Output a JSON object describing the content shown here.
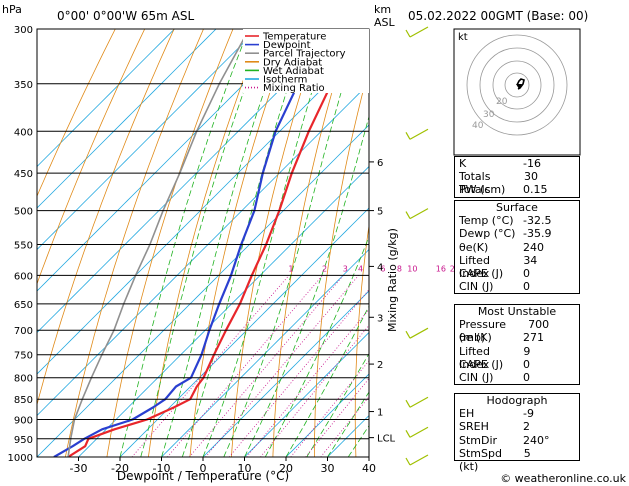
{
  "header": {
    "hpa_label": "hPa",
    "location": "0°00'  0°00'W  65m  ASL",
    "km_label": "km",
    "asl_label": "ASL",
    "datetime": "05.02.2022  00GMT  (Base: 00)"
  },
  "footer": {
    "credit": "© weatheronline.co.uk"
  },
  "chart_data": {
    "type": "line",
    "subtype": "skew-T log-P diagram",
    "xlabel": "Dewpoint / Temperature (°C)",
    "ylabel": "",
    "xlim": [
      -40,
      40
    ],
    "ylim": [
      1000,
      300
    ],
    "y_scale": "log",
    "x_ticks": [
      -30,
      -20,
      -10,
      0,
      10,
      20,
      30,
      40
    ],
    "pressure_levels": [
      300,
      350,
      400,
      450,
      500,
      550,
      600,
      650,
      700,
      750,
      800,
      850,
      900,
      950,
      1000
    ],
    "km_ticks": [
      {
        "label": "1",
        "p": 880
      },
      {
        "label": "2",
        "p": 770
      },
      {
        "label": "3",
        "p": 675
      },
      {
        "label": "4",
        "p": 585
      },
      {
        "label": "5",
        "p": 500
      },
      {
        "label": "6",
        "p": 436
      },
      {
        "label": "LCL",
        "p": 947
      }
    ],
    "mixing_ratio_axis_label": "Mixing Ratio (g/kg)",
    "mixing_ratio_labels": [
      "1",
      "2",
      "3",
      "4",
      "6",
      "8",
      "10",
      "16",
      "20",
      "25"
    ],
    "legend": {
      "placement": "top-right",
      "entries": [
        {
          "name": "Temperature",
          "color": "#e8262b",
          "style": "solid"
        },
        {
          "name": "Dewpoint",
          "color": "#2a3fd0",
          "style": "solid"
        },
        {
          "name": "Parcel Trajectory",
          "color": "#909090",
          "style": "solid"
        },
        {
          "name": "Dry Adiabat",
          "color": "#e08a18",
          "style": "solid"
        },
        {
          "name": "Wet Adiabat",
          "color": "#21b321",
          "style": "solid"
        },
        {
          "name": "Isotherm",
          "color": "#22a8e0",
          "style": "solid"
        },
        {
          "name": "Mixing Ratio",
          "color": "#c8148c",
          "style": "dotted"
        }
      ]
    },
    "series": [
      {
        "name": "Temperature",
        "color": "#e8262b",
        "points": [
          [
            1000,
            -32.5
          ],
          [
            970,
            -31
          ],
          [
            950,
            -32
          ],
          [
            925,
            -28
          ],
          [
            900,
            -22.5
          ],
          [
            870,
            -19
          ],
          [
            850,
            -17
          ],
          [
            820,
            -18.5
          ],
          [
            800,
            -19
          ],
          [
            750,
            -22
          ],
          [
            700,
            -25
          ],
          [
            650,
            -28
          ],
          [
            600,
            -32
          ],
          [
            550,
            -36
          ],
          [
            500,
            -41
          ],
          [
            450,
            -47
          ],
          [
            400,
            -53
          ],
          [
            350,
            -59
          ],
          [
            300,
            -63
          ]
        ]
      },
      {
        "name": "Dewpoint",
        "color": "#2a3fd0",
        "points": [
          [
            1000,
            -35.9
          ],
          [
            970,
            -34
          ],
          [
            950,
            -33
          ],
          [
            925,
            -31
          ],
          [
            900,
            -26
          ],
          [
            870,
            -24
          ],
          [
            850,
            -23
          ],
          [
            820,
            -23.5
          ],
          [
            800,
            -22
          ],
          [
            750,
            -25
          ],
          [
            700,
            -29
          ],
          [
            650,
            -33
          ],
          [
            600,
            -37
          ],
          [
            550,
            -42
          ],
          [
            500,
            -47
          ],
          [
            450,
            -54
          ],
          [
            400,
            -61
          ],
          [
            350,
            -67
          ],
          [
            300,
            -73
          ]
        ]
      },
      {
        "name": "Parcel Trajectory",
        "color": "#909090",
        "points": [
          [
            1000,
            -32.5
          ],
          [
            947,
            -36.5
          ],
          [
            900,
            -40
          ],
          [
            850,
            -43
          ],
          [
            800,
            -46
          ],
          [
            750,
            -49
          ],
          [
            700,
            -52
          ],
          [
            650,
            -56
          ],
          [
            600,
            -60
          ],
          [
            550,
            -64
          ],
          [
            500,
            -69
          ],
          [
            450,
            -74
          ],
          [
            400,
            -80
          ],
          [
            350,
            -86
          ],
          [
            300,
            -92
          ]
        ]
      }
    ],
    "wind_barbs_pressure": [
      300,
      400,
      500,
      700,
      850,
      925,
      1000
    ],
    "hodograph": {
      "label": "kt",
      "ring_labels": [
        "40",
        "30",
        "20"
      ]
    },
    "indices": {
      "rows": [
        {
          "label": "K",
          "value": "-16"
        },
        {
          "label": "Totals Totals",
          "value": "30"
        },
        {
          "label": "PW (cm)",
          "value": "0.15"
        }
      ]
    },
    "surface": {
      "title": "Surface",
      "rows": [
        {
          "label": "Temp (°C)",
          "value": "-32.5"
        },
        {
          "label": "Dewp (°C)",
          "value": "-35.9"
        },
        {
          "label": "θe(K)",
          "value": "240"
        },
        {
          "label": "Lifted Index",
          "value": "34"
        },
        {
          "label": "CAPE (J)",
          "value": "0"
        },
        {
          "label": "CIN (J)",
          "value": "0"
        }
      ]
    },
    "most_unstable": {
      "title": "Most Unstable",
      "rows": [
        {
          "label": "Pressure (mb)",
          "value": "700"
        },
        {
          "label": "θe (K)",
          "value": "271"
        },
        {
          "label": "Lifted Index",
          "value": "9"
        },
        {
          "label": "CAPE (J)",
          "value": "0"
        },
        {
          "label": "CIN (J)",
          "value": "0"
        }
      ]
    },
    "hodograph_table": {
      "title": "Hodograph",
      "rows": [
        {
          "label": "EH",
          "value": "-9"
        },
        {
          "label": "SREH",
          "value": "2"
        },
        {
          "label": "StmDir",
          "value": "240°"
        },
        {
          "label": "StmSpd (kt)",
          "value": "5"
        }
      ]
    }
  }
}
